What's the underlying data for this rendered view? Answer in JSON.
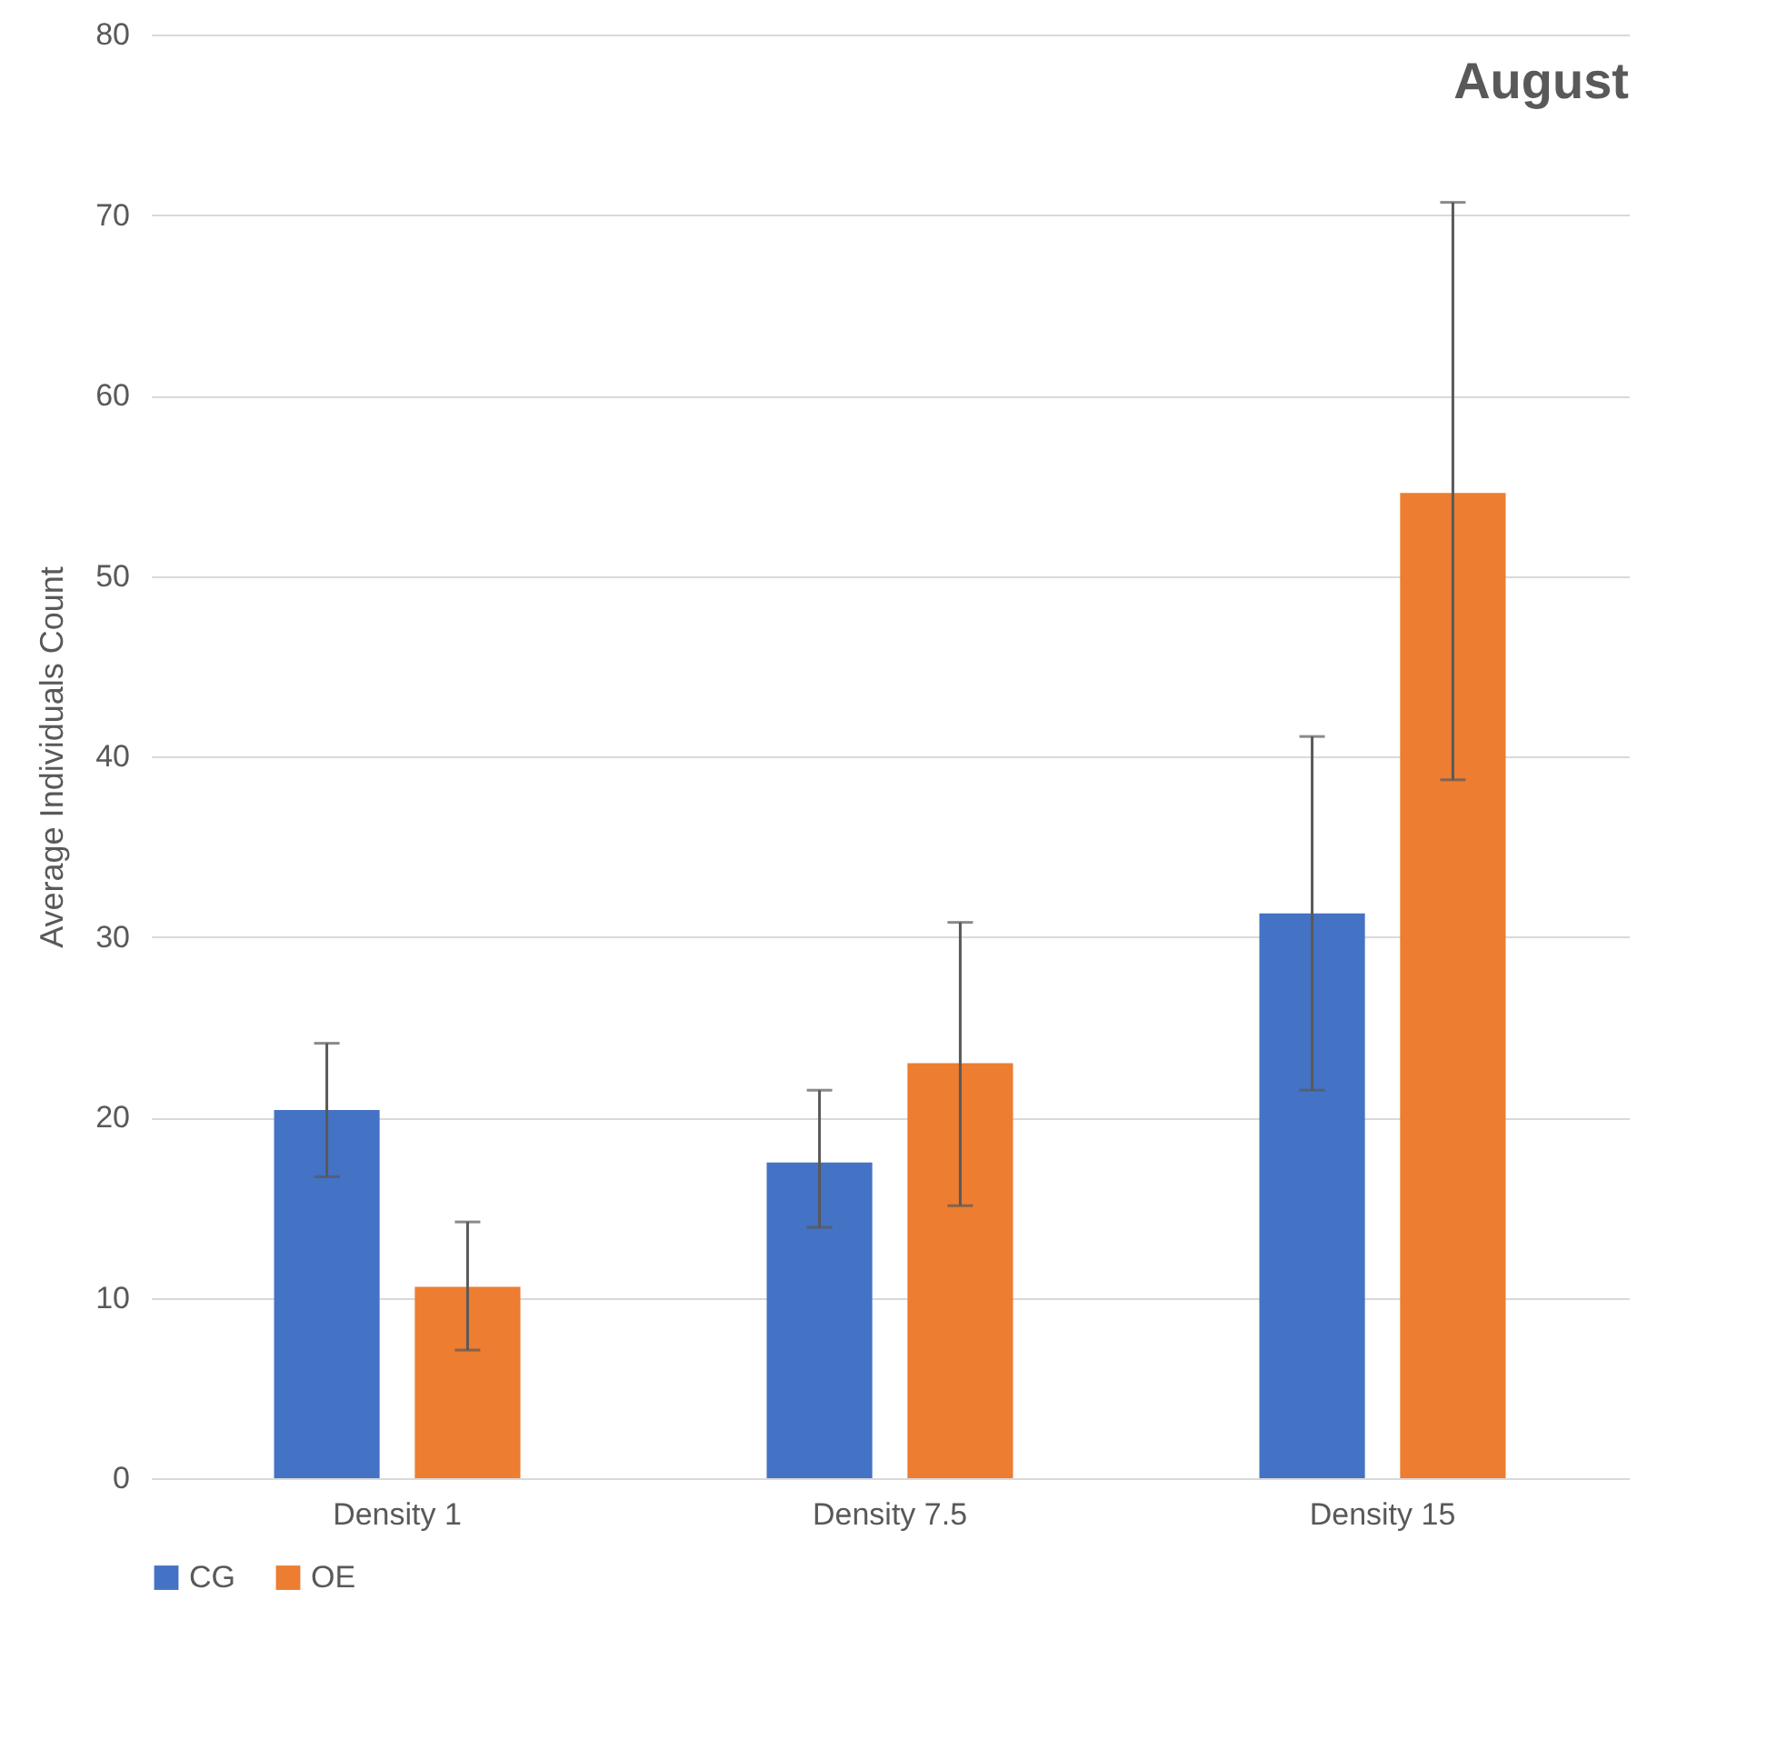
{
  "chart_data": {
    "type": "bar",
    "title": "August",
    "ylabel": "Average Individuals Count",
    "categories": [
      "Density 1",
      "Density 7.5",
      "Density 15"
    ],
    "series": [
      {
        "name": "CG",
        "color": "#4472c4",
        "values": [
          20.4,
          17.5,
          31.3
        ],
        "errors": [
          [
            16.7,
            24.1
          ],
          [
            13.9,
            21.5
          ],
          [
            21.5,
            41.1
          ]
        ]
      },
      {
        "name": "OE",
        "color": "#ed7d31",
        "values": [
          10.6,
          23.0,
          54.6
        ],
        "errors": [
          [
            7.1,
            14.2
          ],
          [
            15.1,
            30.8
          ],
          [
            38.7,
            70.7
          ]
        ]
      }
    ],
    "ylim": [
      0,
      80
    ],
    "yticks": [
      0,
      10,
      20,
      30,
      40,
      50,
      60,
      70,
      80
    ],
    "grid": "y",
    "legend": "bottom"
  }
}
